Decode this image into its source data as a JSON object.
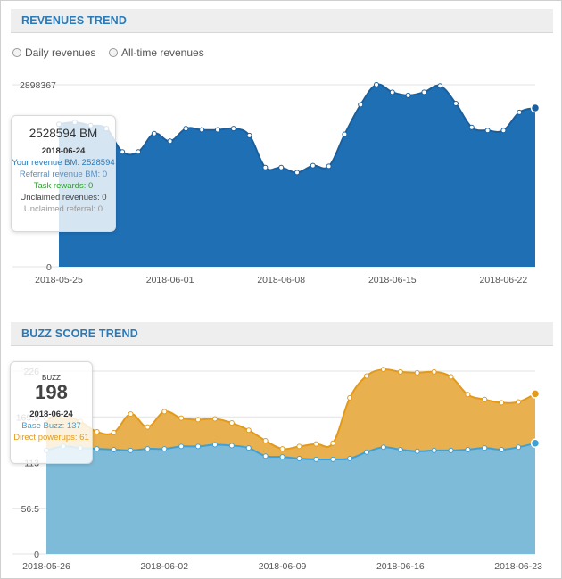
{
  "revenues": {
    "title": "REVENUES TREND",
    "radio_daily": "Daily revenues",
    "radio_alltime": "All-time revenues",
    "tooltip": {
      "big": "2528594 BM",
      "date": "2018-06-24",
      "your_revenue": "Your revenue BM: 2528594",
      "referral": "Referral revenue BM: 0",
      "task": "Task rewards: 0",
      "unclaimed_rev": "Unclaimed revenues: 0",
      "unclaimed_ref": "Unclaimed referral: 0"
    }
  },
  "buzz": {
    "title": "BUZZ SCORE TREND",
    "tooltip": {
      "label": "BUZZ",
      "big": "198",
      "date": "2018-06-24",
      "base": "Base Buzz: 137",
      "direct": "Direct powerups: 61"
    }
  },
  "colors": {
    "revenue_fill": "#1f6fb5",
    "revenue_line": "#1a5f9c",
    "base_fill": "#7dbbd8",
    "base_line": "#3fa0d6",
    "powerup_fill": "#e8b04e",
    "powerup_line": "#e39a1a",
    "green_text": "#2e9b2e",
    "blue_text": "#2a7ab8",
    "orange_text": "#e39a1a"
  },
  "chart_data": [
    {
      "type": "area",
      "title": "REVENUES TREND",
      "x_ticks": [
        "2018-05-25",
        "2018-06-01",
        "2018-06-08",
        "2018-06-15",
        "2018-06-22"
      ],
      "y_ticks": [
        "0",
        "2898367"
      ],
      "ylim": [
        0,
        2898367
      ],
      "grid": true,
      "x": [
        "2018-05-25",
        "2018-05-26",
        "2018-05-27",
        "2018-05-28",
        "2018-05-29",
        "2018-05-30",
        "2018-05-31",
        "2018-06-01",
        "2018-06-02",
        "2018-06-03",
        "2018-06-04",
        "2018-06-05",
        "2018-06-06",
        "2018-06-07",
        "2018-06-08",
        "2018-06-09",
        "2018-06-10",
        "2018-06-11",
        "2018-06-12",
        "2018-06-13",
        "2018-06-14",
        "2018-06-15",
        "2018-06-16",
        "2018-06-17",
        "2018-06-18",
        "2018-06-19",
        "2018-06-20",
        "2018-06-21",
        "2018-06-22",
        "2018-06-23",
        "2018-06-24"
      ],
      "values": [
        2270000,
        2300000,
        2250000,
        2200000,
        1830000,
        1830000,
        2120000,
        2000000,
        2200000,
        2180000,
        2180000,
        2200000,
        2090000,
        1580000,
        1580000,
        1500000,
        1610000,
        1600000,
        2110000,
        2580000,
        2900000,
        2780000,
        2730000,
        2780000,
        2880000,
        2600000,
        2220000,
        2170000,
        2170000,
        2460000,
        2528594
      ]
    },
    {
      "type": "area",
      "title": "BUZZ SCORE TREND",
      "x_ticks": [
        "2018-05-26",
        "2018-06-02",
        "2018-06-09",
        "2018-06-16",
        "2018-06-23"
      ],
      "y_ticks": [
        "0",
        "56.5",
        "113",
        "169.5",
        "226"
      ],
      "ylim": [
        0,
        226
      ],
      "grid": true,
      "x": [
        "2018-05-26",
        "2018-05-27",
        "2018-05-28",
        "2018-05-29",
        "2018-05-30",
        "2018-05-31",
        "2018-06-01",
        "2018-06-02",
        "2018-06-03",
        "2018-06-04",
        "2018-06-05",
        "2018-06-06",
        "2018-06-07",
        "2018-06-08",
        "2018-06-09",
        "2018-06-10",
        "2018-06-11",
        "2018-06-12",
        "2018-06-13",
        "2018-06-14",
        "2018-06-15",
        "2018-06-16",
        "2018-06-17",
        "2018-06-18",
        "2018-06-19",
        "2018-06-20",
        "2018-06-21",
        "2018-06-22",
        "2018-06-23",
        "2018-06-24"
      ],
      "series": [
        {
          "name": "Base Buzz",
          "values": [
            128,
            133,
            131,
            130,
            129,
            128,
            130,
            130,
            133,
            133,
            135,
            134,
            131,
            121,
            120,
            118,
            117,
            117,
            118,
            126,
            132,
            129,
            127,
            128,
            128,
            129,
            131,
            129,
            132,
            137
          ]
        },
        {
          "name": "Direct powerups",
          "values": [
            39,
            38,
            33,
            21,
            21,
            45,
            27,
            46,
            35,
            33,
            32,
            28,
            22,
            19,
            10,
            15,
            19,
            20,
            75,
            94,
            96,
            96,
            97,
            97,
            91,
            68,
            60,
            58,
            56,
            61
          ]
        }
      ]
    }
  ]
}
